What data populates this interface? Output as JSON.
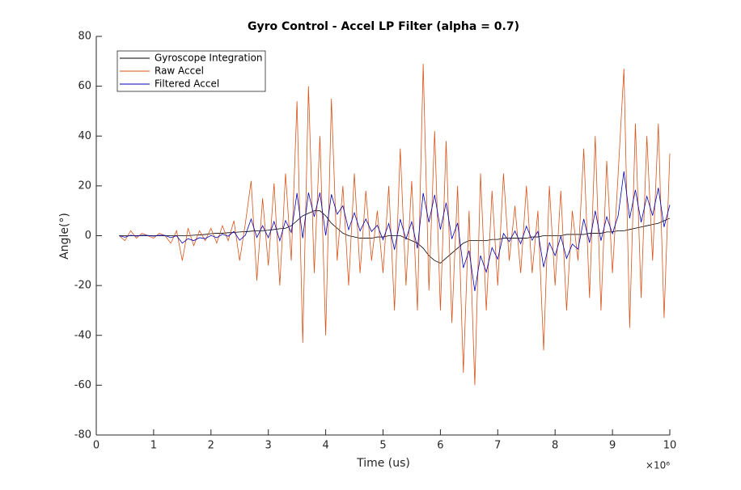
{
  "chart_data": {
    "type": "line",
    "title": "Gyro Control - Accel LP Filter (alpha = 0.7)",
    "xlabel": "Time (us)",
    "ylabel": "Angle(°)",
    "x_exponent": "×10⁶",
    "x": [
      400000,
      500000,
      600000,
      700000,
      800000,
      900000,
      1000000,
      1100000,
      1200000,
      1300000,
      1400000,
      1500000,
      1600000,
      1700000,
      1800000,
      1900000,
      2000000,
      2100000,
      2200000,
      2300000,
      2400000,
      2500000,
      2600000,
      2700000,
      2800000,
      2900000,
      3000000,
      3100000,
      3200000,
      3300000,
      3400000,
      3500000,
      3600000,
      3700000,
      3800000,
      3900000,
      4000000,
      4100000,
      4200000,
      4300000,
      4400000,
      4500000,
      4600000,
      4700000,
      4800000,
      4900000,
      5000000,
      5100000,
      5200000,
      5300000,
      5400000,
      5500000,
      5600000,
      5700000,
      5800000,
      5900000,
      6000000,
      6100000,
      6200000,
      6300000,
      6400000,
      6500000,
      6600000,
      6700000,
      6800000,
      6900000,
      7000000,
      7100000,
      7200000,
      7300000,
      7400000,
      7500000,
      7600000,
      7700000,
      7800000,
      7900000,
      8000000,
      8100000,
      8200000,
      8300000,
      8400000,
      8500000,
      8600000,
      8700000,
      8800000,
      8900000,
      9000000,
      9100000,
      9200000,
      9300000,
      9400000,
      9500000,
      9600000,
      9700000,
      9800000,
      9900000,
      10000000
    ],
    "series": [
      {
        "name": "Gyroscope Integration",
        "color": "#000000",
        "values": [
          0,
          0,
          0,
          0,
          0,
          0,
          0,
          0,
          0,
          0,
          0,
          0,
          0,
          0.2,
          0.3,
          0.5,
          0.8,
          1,
          1,
          1.2,
          1.3,
          1.5,
          1.6,
          1.8,
          2,
          2,
          2.2,
          2.5,
          2.8,
          3,
          4,
          6,
          8,
          9,
          10,
          10,
          8,
          5,
          3,
          1,
          0,
          -0.5,
          -1,
          -1,
          -1,
          -0.5,
          -0.5,
          0,
          0,
          0,
          -1,
          -2,
          -3,
          -5,
          -8,
          -10,
          -11,
          -9,
          -7,
          -5,
          -3,
          -2,
          -2,
          -2,
          -2,
          -1.5,
          -1.5,
          -1,
          -1,
          -1,
          -1,
          -1,
          -0.5,
          -0.5,
          0,
          0,
          0,
          0,
          0.5,
          0.5,
          0.5,
          0.5,
          1,
          1,
          1,
          1.5,
          1.5,
          2,
          2,
          2.5,
          3,
          3.5,
          4,
          4.5,
          5,
          6,
          7
        ]
      },
      {
        "name": "Raw Accel",
        "color": "#d95319",
        "values": [
          0,
          -2,
          2,
          -1,
          1,
          0,
          -1,
          1,
          0,
          -3,
          2,
          -10,
          3,
          -4,
          2,
          -2,
          3,
          -3,
          4,
          -2,
          6,
          -10,
          5,
          22,
          -18,
          15,
          -12,
          21,
          -20,
          25,
          -10,
          54,
          -43,
          60,
          -15,
          40,
          -40,
          55,
          -10,
          20,
          -20,
          25,
          -15,
          18,
          -10,
          10,
          -15,
          20,
          -30,
          35,
          -20,
          22,
          -30,
          69,
          -22,
          42,
          -30,
          38,
          -35,
          20,
          -55,
          10,
          -60,
          25,
          -30,
          18,
          -20,
          25,
          -10,
          12,
          -15,
          20,
          -15,
          10,
          -46,
          20,
          -20,
          18,
          -30,
          10,
          -10,
          35,
          -25,
          40,
          -30,
          30,
          -15,
          25,
          67,
          -37,
          45,
          -25,
          40,
          -10,
          45,
          -33,
          33
        ]
      },
      {
        "name": "Filtered Accel",
        "color": "#0000b4",
        "values": [
          0,
          -0.6,
          0.2,
          -0.2,
          0.2,
          0.1,
          -0.2,
          0.2,
          0.1,
          -0.8,
          0,
          -3,
          -1.2,
          -2,
          -0.8,
          -1.2,
          0.1,
          -0.8,
          0.6,
          -0.2,
          1.7,
          -1.8,
          0.2,
          6.7,
          -0.7,
          4,
          -0.8,
          5.7,
          -2,
          6.1,
          1.3,
          17.1,
          -1,
          17.3,
          7.6,
          17.3,
          0.1,
          16.6,
          8.6,
          12,
          2.4,
          9.2,
          1.9,
          6.7,
          1.7,
          4.2,
          -1.6,
          4.9,
          -5.6,
          6.6,
          -1.4,
          5.6,
          -5.1,
          17.1,
          5.4,
          16.4,
          2.5,
          13.2,
          -1.3,
          5.1,
          -12.9,
          -6,
          -22.2,
          -8,
          -14.6,
          -4.8,
          -9.4,
          0.9,
          -2.4,
          1.9,
          -3.2,
          3.8,
          -1.8,
          1.7,
          -12.6,
          -2.8,
          -8,
          -0.2,
          -9.1,
          -3.4,
          -5.4,
          6.7,
          -2.8,
          10,
          -2,
          7.6,
          0.8,
          8.1,
          25.8,
          7,
          18.4,
          5.4,
          15.8,
          8.1,
          19.2,
          3.5,
          12.4
        ]
      }
    ],
    "xlim": [
      0,
      10000000
    ],
    "xticks": [
      0,
      {
        "value": 1000000,
        "label": "1"
      },
      {
        "value": 2000000,
        "label": "2"
      },
      {
        "value": 3000000,
        "label": "3"
      },
      {
        "value": 4000000,
        "label": "4"
      },
      {
        "value": 5000000,
        "label": "5"
      },
      {
        "value": 6000000,
        "label": "6"
      },
      {
        "value": 7000000,
        "label": "7"
      },
      {
        "value": 8000000,
        "label": "8"
      },
      {
        "value": 9000000,
        "label": "9"
      },
      {
        "value": 10000000,
        "label": "10"
      }
    ],
    "ylim": [
      -80,
      80
    ],
    "yticks": [
      -80,
      -60,
      -40,
      -20,
      0,
      20,
      40,
      60,
      80
    ],
    "legend": "top-left"
  }
}
